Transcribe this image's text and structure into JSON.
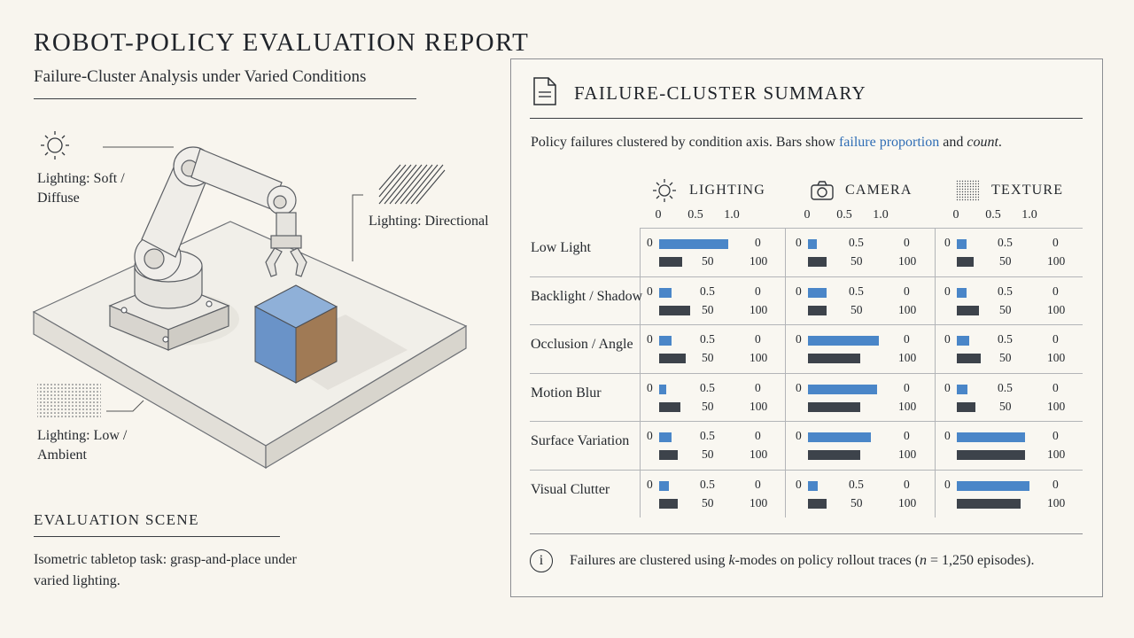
{
  "header": {
    "title": "ROBOT-POLICY EVALUATION REPORT",
    "subtitle": "Failure-Cluster Analysis under Varied Conditions"
  },
  "scene": {
    "labels": {
      "soft_line1": "Lighting: Soft /",
      "soft_line2": "Diffuse",
      "directional": "Lighting: Directional",
      "low_line1": "Lighting: Low /",
      "low_line2": "Ambient"
    },
    "heading": "EVALUATION SCENE",
    "description": "Isometric tabletop task: grasp-and-place under varied lighting."
  },
  "panel": {
    "title": "FAILURE-CLUSTER SUMMARY",
    "intro_prefix": "Policy failures clustered by condition axis. Bars show ",
    "intro_highlight": "failure proportion",
    "intro_mid": " and ",
    "intro_italic": "count",
    "intro_suffix": ".",
    "footnote_prefix": "Failures are clustered using ",
    "footnote_k": "k",
    "footnote_mid": "-modes on policy rollout traces (",
    "footnote_n": "n",
    "footnote_suffix": " = 1,250 episodes).",
    "info_symbol": "i"
  },
  "colors": {
    "proportion_bar": "#4a86c8",
    "count_bar": "#3d434b",
    "cube_front": "#6a93c8",
    "cube_side": "#a07a55"
  },
  "chart_data": {
    "type": "bar",
    "columns": [
      {
        "name": "LIGHTING",
        "icon": "sun-icon"
      },
      {
        "name": "CAMERA",
        "icon": "camera-icon"
      },
      {
        "name": "TEXTURE",
        "icon": "texture-icon"
      }
    ],
    "proportion_axis": {
      "ticks": [
        "0",
        "0.5",
        "1.0"
      ],
      "range": [
        0,
        1
      ]
    },
    "count_axis": {
      "ticks": [
        "50",
        "100"
      ],
      "range": [
        0,
        100
      ]
    },
    "rows": [
      {
        "label": "Low Light",
        "proportion": [
          0.95,
          0.12,
          0.13
        ],
        "count": [
          32,
          25,
          23
        ]
      },
      {
        "label": "Backlight / Shadow",
        "proportion": [
          0.17,
          0.25,
          0.13
        ],
        "count": [
          43,
          25,
          30
        ]
      },
      {
        "label": "Occlusion / Angle",
        "proportion": [
          0.17,
          0.98,
          0.17
        ],
        "count": [
          36,
          72,
          33
        ]
      },
      {
        "label": "Motion Blur",
        "proportion": [
          0.1,
          0.95,
          0.15
        ],
        "count": [
          29,
          72,
          25
        ]
      },
      {
        "label": "Surface Variation",
        "proportion": [
          0.17,
          0.86,
          0.94
        ],
        "count": [
          26,
          72,
          94
        ]
      },
      {
        "label": "Visual Clutter",
        "proportion": [
          0.13,
          0.13,
          1.0
        ],
        "count": [
          26,
          25,
          88
        ]
      }
    ]
  }
}
